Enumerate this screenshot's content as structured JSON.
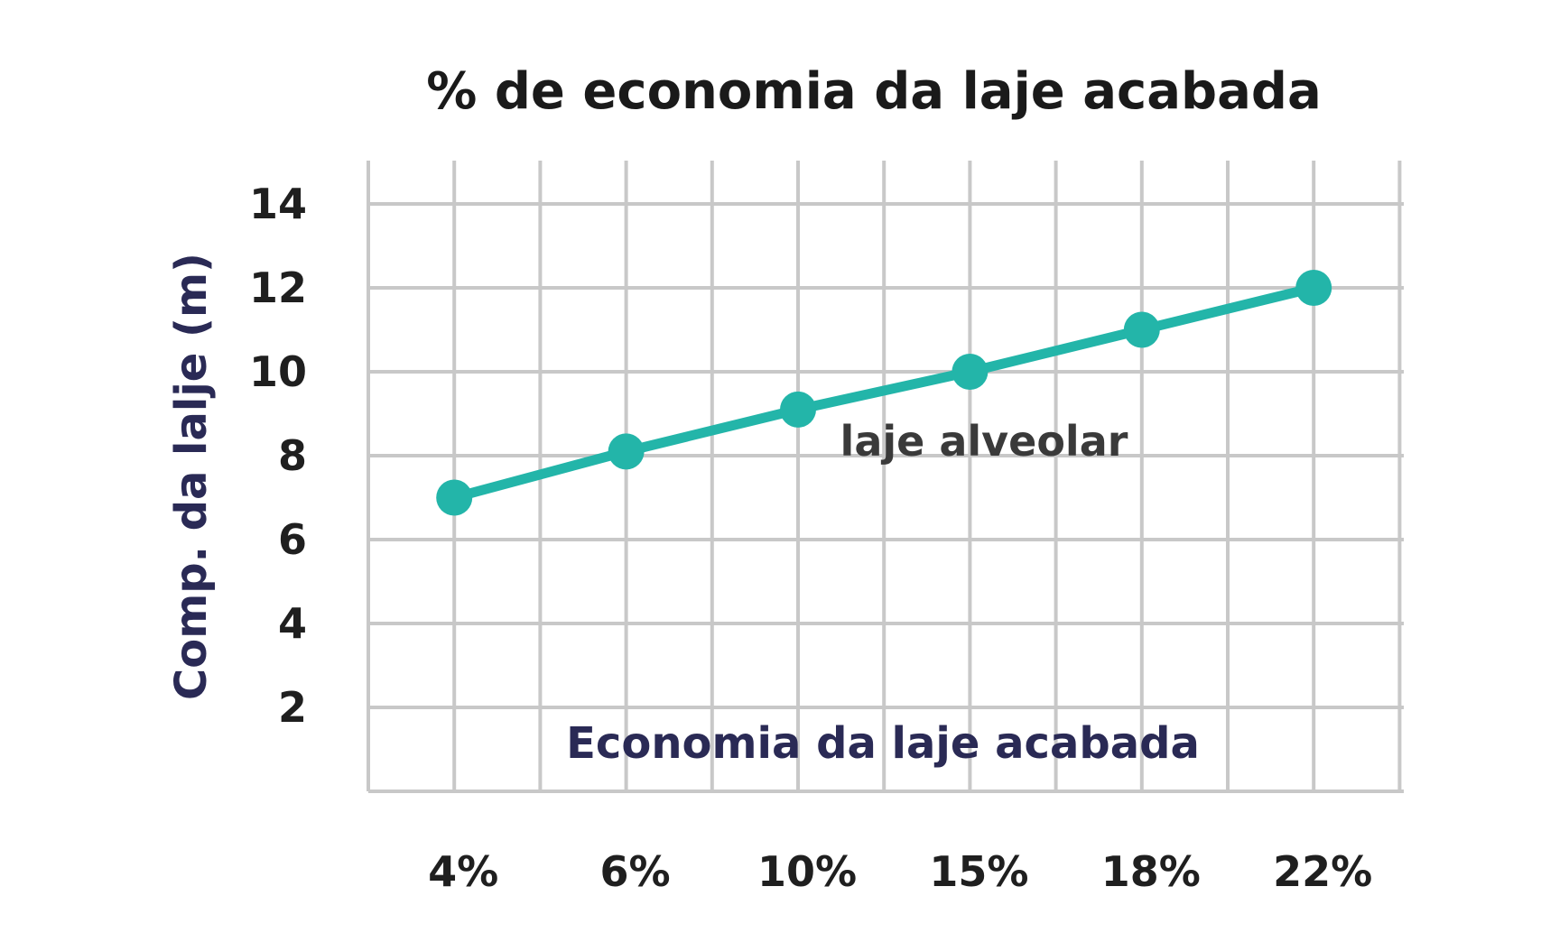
{
  "chart_data": {
    "type": "line",
    "title": "% de economia da laje acabada",
    "xlabel": "Economia da laje acabada",
    "ylabel": "Comp. da lalje (m)",
    "categories": [
      "4%",
      "6%",
      "10%",
      "15%",
      "18%",
      "22%"
    ],
    "y_ticks": [
      "2",
      "4",
      "6",
      "8",
      "10",
      "12",
      "14"
    ],
    "ylim": [
      0,
      15
    ],
    "grid": true,
    "series": [
      {
        "values": [
          7,
          8.1,
          9.1,
          10,
          11,
          12
        ]
      }
    ],
    "annotations": [
      {
        "text": "laje alveolar"
      }
    ],
    "colors": {
      "line": "#23b5a9",
      "grid": "#c8c8c8",
      "axis_label": "#2a2a55",
      "text": "#1f1f1f"
    }
  }
}
